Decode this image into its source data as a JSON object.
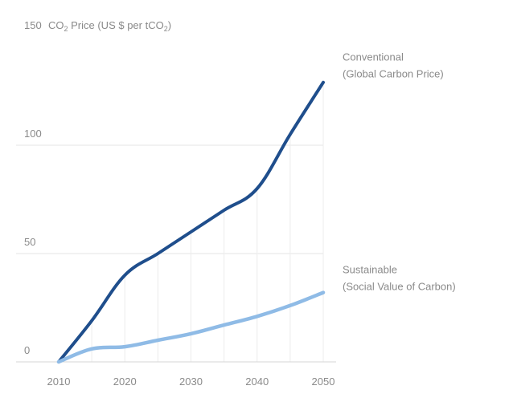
{
  "chart_data": {
    "type": "line",
    "ylabel_prefix": "CO",
    "ylabel_sub": "2",
    "ylabel_mid": " Price (US $ per tCO",
    "ylabel_sub2": "2",
    "ylabel_end": ")",
    "xlim": [
      2010,
      2050
    ],
    "ylim": [
      0,
      150
    ],
    "x_ticks": [
      "2010",
      "2020",
      "2030",
      "2040",
      "2050"
    ],
    "y_ticks": [
      "0",
      "50",
      "100",
      "150"
    ],
    "grid": {
      "horizontal": true,
      "vertical": true
    },
    "colors": {
      "conventional": "#1f4e8c",
      "sustainable": "#8fbbe6"
    },
    "series": [
      {
        "key": "conventional",
        "label_line1": "Conventional",
        "label_line2": "(Global Carbon Price)",
        "x": [
          2010,
          2015,
          2020,
          2025,
          2030,
          2035,
          2040,
          2045,
          2050
        ],
        "values": [
          0,
          19,
          40,
          50,
          60,
          70,
          80,
          105,
          129
        ]
      },
      {
        "key": "sustainable",
        "label_line1": "Sustainable",
        "label_line2": "(Social Value of Carbon)",
        "x": [
          2010,
          2015,
          2020,
          2025,
          2030,
          2035,
          2040,
          2045,
          2050
        ],
        "values": [
          0,
          6,
          7,
          10,
          13,
          17,
          21,
          26,
          32
        ]
      }
    ]
  }
}
